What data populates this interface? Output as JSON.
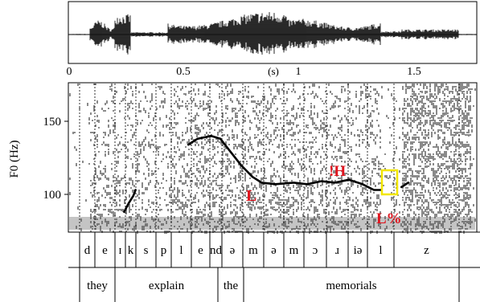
{
  "time_axis": {
    "unit": "(s)",
    "tick_labels": [
      "0",
      "0.5",
      "1",
      "1.5"
    ]
  },
  "f0_axis": {
    "label": "F0 (Hz)",
    "tick_labels": [
      "150",
      "100"
    ]
  },
  "annotations": {
    "tone_L": "L",
    "tone_downstep_H": "!H",
    "boundary_tone": "L%"
  },
  "segments": [
    "d",
    "e",
    "ɪ",
    "k",
    "s",
    "p",
    "l",
    "e",
    "nd",
    "ə",
    "m",
    "ə",
    "m",
    "ɔ",
    "ɹ",
    "iə",
    "l",
    "z"
  ],
  "words": [
    "they",
    "explain",
    "the",
    "memorials"
  ],
  "colors": {
    "annotation": "#e0141e",
    "highlight_box": "#f2e600",
    "pitch": "#000000",
    "spectrogram_dark": "#1a1a1a"
  },
  "chart_data": {
    "type": "line",
    "x_unit": "s",
    "xlim": [
      0,
      1.75
    ],
    "ylim": [
      75,
      175
    ],
    "yticks": [
      100,
      150
    ],
    "ylabel": "F0 (Hz)",
    "series": [
      {
        "values": [
          [
            0.24,
            88
          ],
          [
            0.26,
            94
          ],
          [
            0.28,
            99
          ],
          [
            0.29,
            103
          ]
        ]
      },
      {
        "values": [
          [
            0.52,
            134
          ],
          [
            0.56,
            138
          ],
          [
            0.62,
            140
          ],
          [
            0.66,
            138
          ],
          [
            0.7,
            130
          ],
          [
            0.75,
            120
          ],
          [
            0.8,
            112
          ],
          [
            0.84,
            108
          ],
          [
            0.9,
            107
          ],
          [
            0.98,
            108
          ],
          [
            1.04,
            107
          ],
          [
            1.1,
            109
          ],
          [
            1.16,
            108
          ],
          [
            1.22,
            110
          ],
          [
            1.28,
            107
          ],
          [
            1.33,
            103
          ],
          [
            1.36,
            103
          ]
        ]
      },
      {
        "values": [
          [
            1.45,
            105
          ],
          [
            1.48,
            108
          ]
        ]
      }
    ]
  }
}
